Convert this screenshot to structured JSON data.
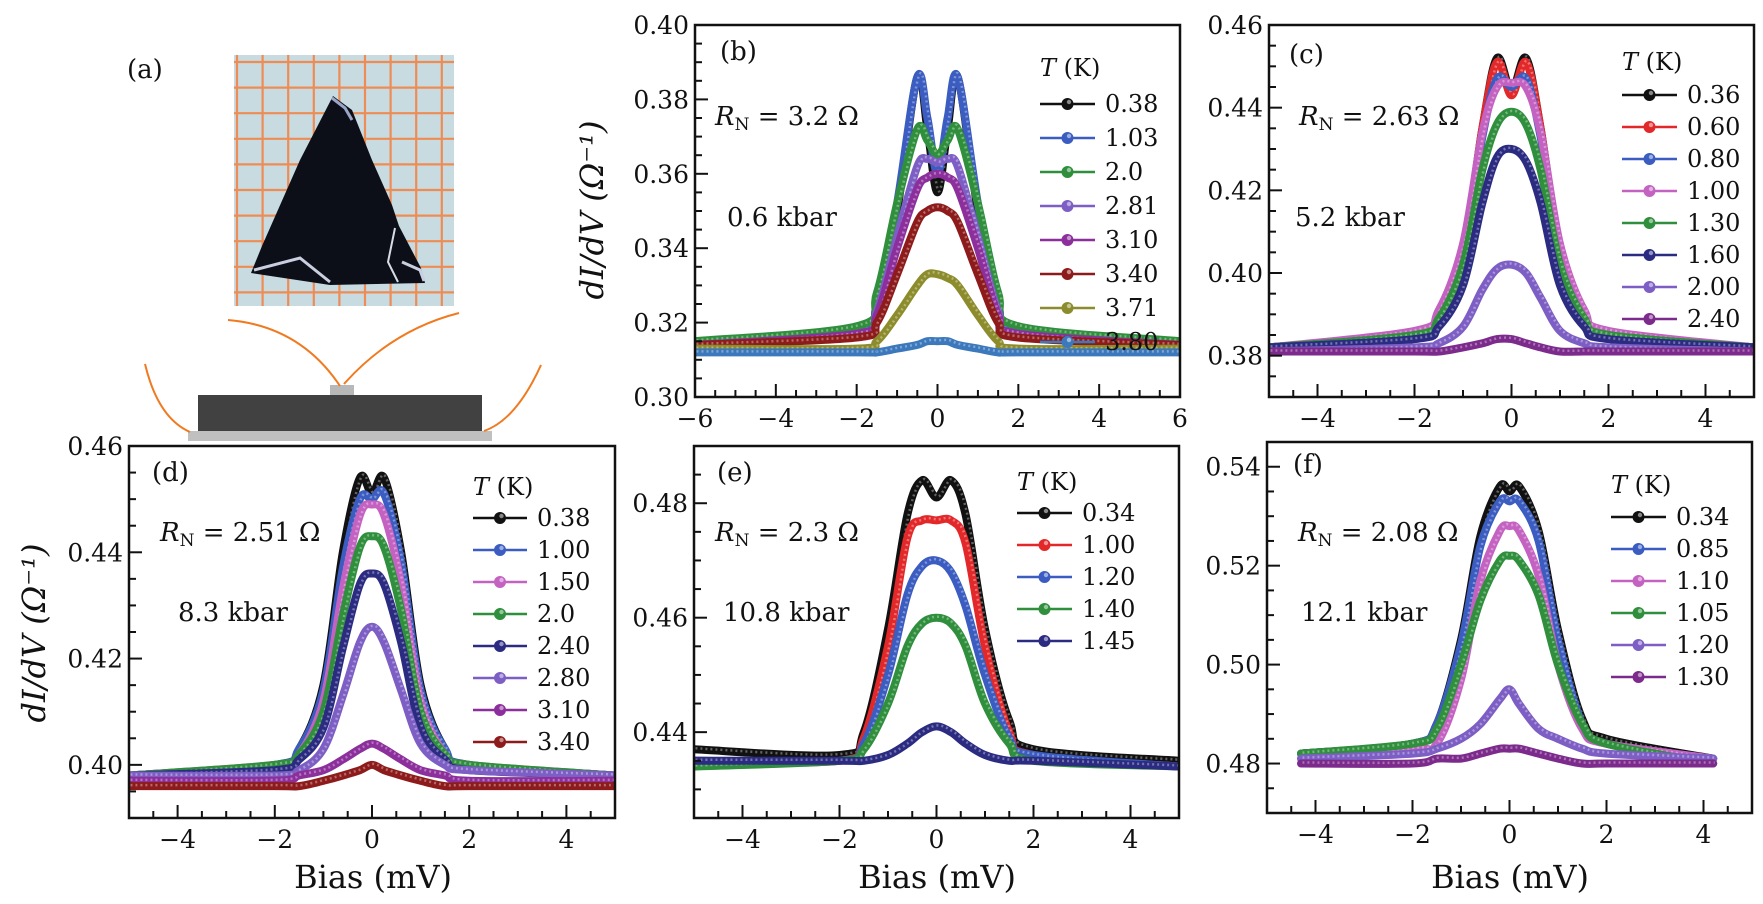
{
  "panel_a": {
    "label": "(a)",
    "photo_grid_color": "#ee8c55",
    "photo_background": "#c8dbe0",
    "wire_color": "#f07a20",
    "substrate_color": "#c0c0c0",
    "sample_color": "#414141"
  },
  "chart_data": [
    {
      "panel": "b",
      "type": "line",
      "panel_label": "(b)",
      "rn": {
        "symbol": "R",
        "sub": "N",
        "value": " = 3.2 Ω"
      },
      "pressure": "0.6 kbar",
      "ylabel": "dI/dV (Ω⁻¹)",
      "xlabel": "",
      "xlim": [
        -6,
        6
      ],
      "ylim": [
        0.3,
        0.4
      ],
      "xticks": [
        -6,
        -4,
        -2,
        0,
        2,
        4,
        6
      ],
      "xtick_labels": [
        "−6",
        "−4",
        "−2",
        "0",
        "2",
        "4",
        "6"
      ],
      "xminor": 0.5,
      "yticks": [
        0.3,
        0.32,
        0.34,
        0.36,
        0.38,
        0.4
      ],
      "ytick_labels": [
        "0.30",
        "0.32",
        "0.34",
        "0.36",
        "0.38",
        "0.40"
      ],
      "yminor": 0.005,
      "legend_title": "T (K)",
      "legend_position": "top-right",
      "x": [
        -6,
        -2,
        -1.5,
        -1,
        -0.5,
        -0.25,
        0,
        0.25,
        0.5,
        1,
        1.5,
        2,
        6
      ],
      "series": [
        {
          "name": "0.38",
          "color": "#111111",
          "y": [
            0.314,
            0.318,
            0.325,
            0.35,
            0.386,
            0.372,
            0.355,
            0.372,
            0.386,
            0.35,
            0.325,
            0.318,
            0.314
          ]
        },
        {
          "name": "1.03",
          "color": "#3b5cc0",
          "y": [
            0.314,
            0.318,
            0.325,
            0.352,
            0.386,
            0.375,
            0.36,
            0.375,
            0.386,
            0.352,
            0.325,
            0.318,
            0.314
          ]
        },
        {
          "name": "2.0",
          "color": "#2f8f3c",
          "y": [
            0.315,
            0.319,
            0.328,
            0.352,
            0.372,
            0.369,
            0.365,
            0.369,
            0.372,
            0.352,
            0.328,
            0.319,
            0.315
          ]
        },
        {
          "name": "2.81",
          "color": "#7d5ec4",
          "y": [
            0.314,
            0.317,
            0.323,
            0.343,
            0.362,
            0.364,
            0.363,
            0.364,
            0.362,
            0.343,
            0.323,
            0.317,
            0.314
          ]
        },
        {
          "name": "3.10",
          "color": "#8c2f9c",
          "y": [
            0.314,
            0.317,
            0.322,
            0.34,
            0.356,
            0.359,
            0.36,
            0.359,
            0.356,
            0.34,
            0.322,
            0.317,
            0.314
          ]
        },
        {
          "name": "3.40",
          "color": "#8e1b1b",
          "y": [
            0.314,
            0.316,
            0.32,
            0.333,
            0.347,
            0.35,
            0.351,
            0.35,
            0.347,
            0.333,
            0.32,
            0.316,
            0.314
          ]
        },
        {
          "name": "3.71",
          "color": "#8c8c2c",
          "y": [
            0.313,
            0.313,
            0.315,
            0.322,
            0.33,
            0.333,
            0.333,
            0.332,
            0.33,
            0.322,
            0.315,
            0.313,
            0.313
          ]
        },
        {
          "name": "3.80",
          "color": "#3b78bc",
          "y": [
            0.312,
            0.312,
            0.312,
            0.313,
            0.314,
            0.315,
            0.315,
            0.315,
            0.314,
            0.313,
            0.312,
            0.312,
            0.312
          ]
        }
      ]
    },
    {
      "panel": "c",
      "type": "line",
      "panel_label": "(c)",
      "rn": {
        "symbol": "R",
        "sub": "N",
        "value": " = 2.63 Ω"
      },
      "pressure": "5.2 kbar",
      "ylabel": "",
      "xlabel": "",
      "xlim": [
        -5,
        5
      ],
      "ylim": [
        0.37,
        0.46
      ],
      "xticks": [
        -4,
        -2,
        0,
        2,
        4
      ],
      "xtick_labels": [
        "−4",
        "−2",
        "0",
        "2",
        "4"
      ],
      "xminor": 0.5,
      "yticks": [
        0.38,
        0.4,
        0.42,
        0.44,
        0.46
      ],
      "ytick_labels": [
        "0.38",
        "0.40",
        "0.42",
        "0.44",
        "0.46"
      ],
      "yminor": 0.005,
      "legend_title": "T (K)",
      "legend_position": "top-right",
      "x": [
        -5,
        -2,
        -1.5,
        -1,
        -0.6,
        -0.3,
        0,
        0.3,
        0.6,
        1,
        1.5,
        2,
        5
      ],
      "series": [
        {
          "name": "0.36",
          "color": "#111111",
          "y": [
            0.382,
            0.385,
            0.39,
            0.405,
            0.435,
            0.452,
            0.444,
            0.452,
            0.435,
            0.405,
            0.39,
            0.385,
            0.382
          ]
        },
        {
          "name": "0.60",
          "color": "#e3282a",
          "y": [
            0.382,
            0.385,
            0.39,
            0.405,
            0.435,
            0.451,
            0.443,
            0.451,
            0.435,
            0.405,
            0.39,
            0.385,
            0.382
          ]
        },
        {
          "name": "0.80",
          "color": "#3b5cc0",
          "y": [
            0.382,
            0.385,
            0.39,
            0.405,
            0.433,
            0.447,
            0.445,
            0.447,
            0.433,
            0.405,
            0.39,
            0.385,
            0.382
          ]
        },
        {
          "name": "1.00",
          "color": "#c462c2",
          "y": [
            0.382,
            0.386,
            0.391,
            0.407,
            0.434,
            0.445,
            0.446,
            0.445,
            0.434,
            0.407,
            0.391,
            0.386,
            0.382
          ]
        },
        {
          "name": "1.30",
          "color": "#2f8f3c",
          "y": [
            0.382,
            0.385,
            0.389,
            0.402,
            0.425,
            0.436,
            0.439,
            0.436,
            0.425,
            0.402,
            0.389,
            0.385,
            0.382
          ]
        },
        {
          "name": "1.60",
          "color": "#2b2b82",
          "y": [
            0.382,
            0.384,
            0.387,
            0.397,
            0.417,
            0.428,
            0.43,
            0.427,
            0.417,
            0.397,
            0.387,
            0.384,
            0.382
          ]
        },
        {
          "name": "2.00",
          "color": "#7d5ec4",
          "y": [
            0.381,
            0.382,
            0.383,
            0.387,
            0.396,
            0.401,
            0.402,
            0.4,
            0.394,
            0.386,
            0.383,
            0.382,
            0.381
          ]
        },
        {
          "name": "2.40",
          "color": "#7c2a8c",
          "y": [
            0.381,
            0.381,
            0.381,
            0.382,
            0.383,
            0.384,
            0.384,
            0.383,
            0.382,
            0.381,
            0.381,
            0.381,
            0.381
          ]
        }
      ]
    },
    {
      "panel": "d",
      "type": "line",
      "panel_label": "(d)",
      "rn": {
        "symbol": "R",
        "sub": "N",
        "value": " = 2.51 Ω"
      },
      "pressure": "8.3 kbar",
      "ylabel": "dI/dV (Ω⁻¹)",
      "xlabel": "Bias (mV)",
      "xlim": [
        -5,
        5
      ],
      "ylim": [
        0.39,
        0.46
      ],
      "xticks": [
        -4,
        -2,
        0,
        2,
        4
      ],
      "xtick_labels": [
        "−4",
        "−2",
        "0",
        "2",
        "4"
      ],
      "xminor": 0.5,
      "yticks": [
        0.4,
        0.42,
        0.44,
        0.46
      ],
      "ytick_labels": [
        "0.40",
        "0.42",
        "0.44",
        "0.46"
      ],
      "yminor": 0.005,
      "legend_title": "T (K)",
      "legend_position": "top-right",
      "x": [
        -5,
        -2,
        -1.5,
        -1,
        -0.6,
        -0.25,
        0,
        0.25,
        0.6,
        1,
        1.5,
        2,
        5
      ],
      "series": [
        {
          "name": "0.38",
          "color": "#111111",
          "y": [
            0.398,
            0.4,
            0.403,
            0.415,
            0.44,
            0.454,
            0.451,
            0.454,
            0.44,
            0.415,
            0.403,
            0.4,
            0.398
          ]
        },
        {
          "name": "1.00",
          "color": "#3b5cc0",
          "y": [
            0.398,
            0.4,
            0.403,
            0.414,
            0.437,
            0.45,
            0.45,
            0.451,
            0.438,
            0.414,
            0.403,
            0.4,
            0.398
          ]
        },
        {
          "name": "1.50",
          "color": "#c462c2",
          "y": [
            0.398,
            0.4,
            0.402,
            0.412,
            0.433,
            0.447,
            0.449,
            0.447,
            0.434,
            0.412,
            0.402,
            0.4,
            0.398
          ]
        },
        {
          "name": "2.0",
          "color": "#2f8f3c",
          "y": [
            0.398,
            0.4,
            0.402,
            0.41,
            0.428,
            0.441,
            0.443,
            0.441,
            0.429,
            0.41,
            0.402,
            0.4,
            0.398
          ]
        },
        {
          "name": "2.40",
          "color": "#2b2b82",
          "y": [
            0.398,
            0.399,
            0.401,
            0.407,
            0.422,
            0.434,
            0.436,
            0.434,
            0.423,
            0.407,
            0.401,
            0.399,
            0.398
          ]
        },
        {
          "name": "2.80",
          "color": "#7d5ec4",
          "y": [
            0.398,
            0.398,
            0.399,
            0.403,
            0.413,
            0.423,
            0.426,
            0.423,
            0.414,
            0.404,
            0.4,
            0.399,
            0.398
          ]
        },
        {
          "name": "3.10",
          "color": "#8c2f9c",
          "y": [
            0.397,
            0.397,
            0.398,
            0.399,
            0.401,
            0.403,
            0.404,
            0.403,
            0.401,
            0.399,
            0.398,
            0.397,
            0.397
          ]
        },
        {
          "name": "3.40",
          "color": "#8e1b1b",
          "y": [
            0.396,
            0.396,
            0.396,
            0.397,
            0.398,
            0.399,
            0.4,
            0.399,
            0.398,
            0.397,
            0.396,
            0.396,
            0.396
          ]
        }
      ]
    },
    {
      "panel": "e",
      "type": "line",
      "panel_label": "(e)",
      "rn": {
        "symbol": "R",
        "sub": "N",
        "value": " = 2.3 Ω"
      },
      "pressure": "10.8 kbar",
      "ylabel": "",
      "xlabel": "Bias (mV)",
      "xlim": [
        -5,
        5
      ],
      "ylim": [
        0.425,
        0.49
      ],
      "xticks": [
        -4,
        -2,
        0,
        2,
        4
      ],
      "xtick_labels": [
        "−4",
        "−2",
        "0",
        "2",
        "4"
      ],
      "xminor": 0.5,
      "yticks": [
        0.44,
        0.46,
        0.48
      ],
      "ytick_labels": [
        "0.44",
        "0.46",
        "0.48"
      ],
      "yminor": 0.005,
      "legend_title": "T (K)",
      "legend_position": "top-right",
      "x": [
        -5,
        -2,
        -1.5,
        -1,
        -0.6,
        -0.3,
        0,
        0.3,
        0.6,
        1,
        1.5,
        2,
        5
      ],
      "series": [
        {
          "name": "0.34",
          "color": "#111111",
          "y": [
            0.437,
            0.436,
            0.44,
            0.458,
            0.478,
            0.484,
            0.481,
            0.484,
            0.478,
            0.458,
            0.442,
            0.437,
            0.435
          ]
        },
        {
          "name": "1.00",
          "color": "#e3282a",
          "y": [
            0.435,
            0.435,
            0.439,
            0.455,
            0.474,
            0.477,
            0.477,
            0.477,
            0.473,
            0.455,
            0.44,
            0.436,
            0.434
          ]
        },
        {
          "name": "1.20",
          "color": "#3b5cc0",
          "y": [
            0.435,
            0.435,
            0.438,
            0.45,
            0.464,
            0.469,
            0.47,
            0.468,
            0.462,
            0.45,
            0.439,
            0.436,
            0.434
          ]
        },
        {
          "name": "1.40",
          "color": "#2f8f3c",
          "y": [
            0.434,
            0.435,
            0.437,
            0.445,
            0.455,
            0.459,
            0.46,
            0.459,
            0.455,
            0.445,
            0.438,
            0.435,
            0.434
          ]
        },
        {
          "name": "1.45",
          "color": "#2b2b82",
          "y": [
            0.435,
            0.435,
            0.435,
            0.436,
            0.438,
            0.44,
            0.441,
            0.44,
            0.438,
            0.436,
            0.435,
            0.435,
            0.434
          ]
        }
      ]
    },
    {
      "panel": "f",
      "type": "line",
      "panel_label": "(f)",
      "rn": {
        "symbol": "R",
        "sub": "N",
        "value": " = 2.08 Ω"
      },
      "pressure": "12.1 kbar",
      "ylabel": "",
      "xlabel": "Bias (mV)",
      "xlim": [
        -5,
        5
      ],
      "ylim": [
        0.47,
        0.545
      ],
      "xticks": [
        -4,
        -2,
        0,
        2,
        4
      ],
      "xtick_labels": [
        "−4",
        "−2",
        "0",
        "2",
        "4"
      ],
      "xminor": 0.5,
      "yticks": [
        0.48,
        0.5,
        0.52,
        0.54
      ],
      "ytick_labels": [
        "0.48",
        "0.50",
        "0.52",
        "0.54"
      ],
      "yminor": 0.005,
      "legend_title": "T (K)",
      "legend_position": "top-right",
      "x": [
        -4.3,
        -2,
        -1.5,
        -1,
        -0.6,
        -0.2,
        0,
        0.2,
        0.6,
        1,
        1.5,
        2,
        4.2
      ],
      "series": [
        {
          "name": "0.34",
          "color": "#111111",
          "y": [
            0.482,
            0.484,
            0.488,
            0.505,
            0.526,
            0.536,
            0.535,
            0.536,
            0.527,
            0.507,
            0.489,
            0.485,
            0.481
          ]
        },
        {
          "name": "0.85",
          "color": "#3b5cc0",
          "y": [
            0.482,
            0.484,
            0.488,
            0.504,
            0.524,
            0.533,
            0.533,
            0.533,
            0.525,
            0.505,
            0.488,
            0.484,
            0.481
          ]
        },
        {
          "name": "1.10",
          "color": "#c462c2",
          "y": [
            0.481,
            0.483,
            0.484,
            0.497,
            0.517,
            0.527,
            0.528,
            0.527,
            0.518,
            0.5,
            0.487,
            0.484,
            0.481
          ]
        },
        {
          "name": "1.05",
          "color": "#2f8f3c",
          "y": [
            0.482,
            0.484,
            0.487,
            0.5,
            0.513,
            0.521,
            0.522,
            0.521,
            0.514,
            0.5,
            0.488,
            0.484,
            0.48
          ]
        },
        {
          "name": "1.20",
          "color": "#7d5ec4",
          "y": [
            0.481,
            0.482,
            0.483,
            0.485,
            0.488,
            0.493,
            0.495,
            0.492,
            0.487,
            0.485,
            0.483,
            0.482,
            0.481
          ]
        },
        {
          "name": "1.30",
          "color": "#7c2a8c",
          "y": [
            0.48,
            0.48,
            0.481,
            0.481,
            0.482,
            0.483,
            0.483,
            0.483,
            0.482,
            0.481,
            0.48,
            0.48,
            0.48
          ]
        }
      ]
    }
  ]
}
